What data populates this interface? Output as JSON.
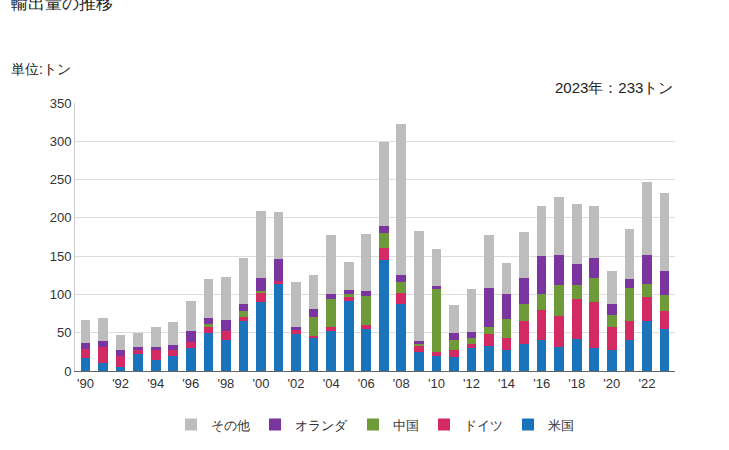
{
  "chart_data": {
    "type": "bar",
    "title": "輸出量の推移",
    "ylabel": "単位:トン",
    "annotation": "2023年：233トン",
    "stacked": true,
    "grid": true,
    "legend": "bottom",
    "categories": [
      "'90",
      null,
      "'92",
      null,
      "'94",
      null,
      "'96",
      null,
      "'98",
      null,
      "'00",
      null,
      "'02",
      null,
      "'04",
      null,
      "'06",
      null,
      "'08",
      null,
      "'10",
      null,
      "'12",
      null,
      "'14",
      null,
      "'16",
      null,
      "'18",
      null,
      "'20",
      null,
      "'22",
      null
    ],
    "ylim": [
      0,
      350
    ],
    "yticks": [
      0,
      50,
      100,
      150,
      200,
      250,
      300,
      350
    ],
    "series": [
      {
        "name": "米国",
        "color": "#1a74bb",
        "values": [
          17,
          10,
          5,
          22,
          15,
          20,
          30,
          50,
          40,
          65,
          90,
          113,
          48,
          43,
          52,
          92,
          55,
          145,
          87,
          25,
          20,
          18,
          30,
          33,
          28,
          35,
          40,
          32,
          42,
          30,
          28,
          40,
          65,
          55
        ]
      },
      {
        "name": "ドイツ",
        "color": "#d42a63",
        "values": [
          12,
          22,
          15,
          5,
          12,
          8,
          8,
          8,
          12,
          5,
          12,
          5,
          5,
          3,
          5,
          5,
          5,
          15,
          15,
          8,
          5,
          10,
          5,
          15,
          15,
          30,
          40,
          40,
          52,
          60,
          30,
          25,
          32,
          24
        ]
      },
      {
        "name": "中国",
        "color": "#6e9a3a",
        "values": [
          0,
          0,
          0,
          0,
          0,
          0,
          0,
          3,
          0,
          8,
          2,
          0,
          0,
          25,
          37,
          3,
          38,
          20,
          14,
          2,
          82,
          12,
          8,
          10,
          25,
          22,
          20,
          40,
          18,
          32,
          15,
          43,
          17,
          20
        ]
      },
      {
        "name": "オランダ",
        "color": "#7b35a0",
        "values": [
          7,
          7,
          8,
          5,
          5,
          6,
          14,
          8,
          14,
          10,
          18,
          28,
          4,
          10,
          7,
          6,
          6,
          10,
          9,
          4,
          4,
          10,
          8,
          51,
          32,
          35,
          50,
          40,
          28,
          26,
          14,
          12,
          38,
          31
        ]
      },
      {
        "name": "その他",
        "color": "#bdbdbd",
        "values": [
          30,
          30,
          19,
          18,
          25,
          30,
          39,
          51,
          57,
          59,
          87,
          62,
          59,
          45,
          77,
          37,
          75,
          109,
          198,
          144,
          48,
          36,
          56,
          68,
          41,
          60,
          66,
          75,
          78,
          68,
          44,
          66,
          95,
          103
        ]
      }
    ]
  }
}
